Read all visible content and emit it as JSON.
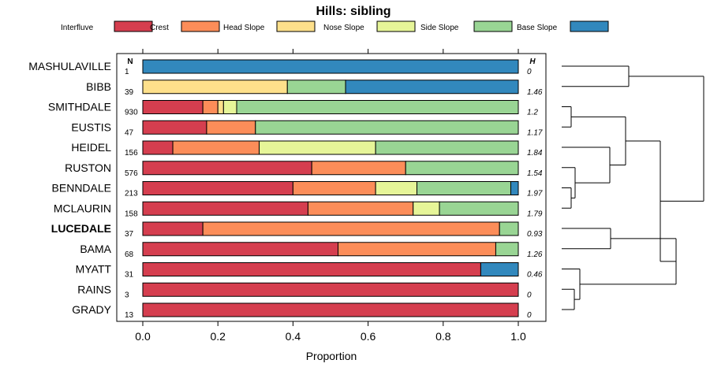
{
  "chart_data": {
    "type": "bar",
    "orientation": "horizontal",
    "stacked": true,
    "title": "Hills: sibling",
    "xlabel": "Proportion",
    "xlim": [
      0,
      1
    ],
    "xticks": [
      "0.0",
      "0.2",
      "0.4",
      "0.6",
      "0.8",
      "1.0"
    ],
    "n_header": "N",
    "h_header": "H",
    "legend": [
      {
        "name": "Interfluve",
        "color": "#d53e4f"
      },
      {
        "name": "Crest",
        "color": "#fc8d59"
      },
      {
        "name": "Head Slope",
        "color": "#fee08b"
      },
      {
        "name": "Nose Slope",
        "color": "#e6f598"
      },
      {
        "name": "Side Slope",
        "color": "#99d594"
      },
      {
        "name": "Base Slope",
        "color": "#3288bd"
      }
    ],
    "categories": [
      "MASHULAVILLE",
      "BIBB",
      "SMITHDALE",
      "EUSTIS",
      "HEIDEL",
      "RUSTON",
      "BENNDALE",
      "MCLAURIN",
      "LUCEDALE",
      "BAMA",
      "MYATT",
      "RAINS",
      "GRADY"
    ],
    "highlight": "LUCEDALE",
    "n": [
      "1",
      "39",
      "930",
      "47",
      "156",
      "576",
      "213",
      "158",
      "37",
      "68",
      "31",
      "3",
      "13"
    ],
    "h": [
      "0",
      "1.46",
      "1.2",
      "1.17",
      "1.84",
      "1.54",
      "1.97",
      "1.79",
      "0.93",
      "1.26",
      "0.46",
      "0",
      "0"
    ],
    "series": [
      {
        "name": "Interfluve",
        "values": [
          0,
          0,
          0.16,
          0.17,
          0.08,
          0.45,
          0.4,
          0.44,
          0.16,
          0.52,
          0.9,
          1.0,
          1.0
        ]
      },
      {
        "name": "Crest",
        "values": [
          0,
          0,
          0.04,
          0.13,
          0.23,
          0.25,
          0.22,
          0.28,
          0.79,
          0.42,
          0,
          0,
          0
        ]
      },
      {
        "name": "Head Slope",
        "values": [
          0,
          0.385,
          0.015,
          0,
          0,
          0,
          0,
          0,
          0,
          0,
          0,
          0,
          0
        ]
      },
      {
        "name": "Nose Slope",
        "values": [
          0,
          0,
          0.035,
          0,
          0.31,
          0,
          0.11,
          0.07,
          0,
          0,
          0,
          0,
          0
        ]
      },
      {
        "name": "Side Slope",
        "values": [
          0,
          0.155,
          0.75,
          0.7,
          0.38,
          0.3,
          0.25,
          0.21,
          0.05,
          0.06,
          0,
          0,
          0
        ]
      },
      {
        "name": "Base Slope",
        "values": [
          1.0,
          0.46,
          0,
          0,
          0,
          0,
          0.02,
          0,
          0,
          0,
          0.1,
          0,
          0
        ]
      }
    ],
    "dendrogram": {
      "merges": [
        [
          0,
          1
        ],
        [
          3,
          4
        ],
        [
          6,
          7
        ],
        [
          5,
          6
        ],
        [
          4,
          5
        ],
        [
          2,
          3
        ],
        [
          9,
          10
        ],
        [
          11,
          12
        ],
        [
          10,
          11
        ],
        [
          8,
          9
        ],
        [
          1,
          2
        ],
        [
          -1,
          8
        ]
      ]
    }
  }
}
